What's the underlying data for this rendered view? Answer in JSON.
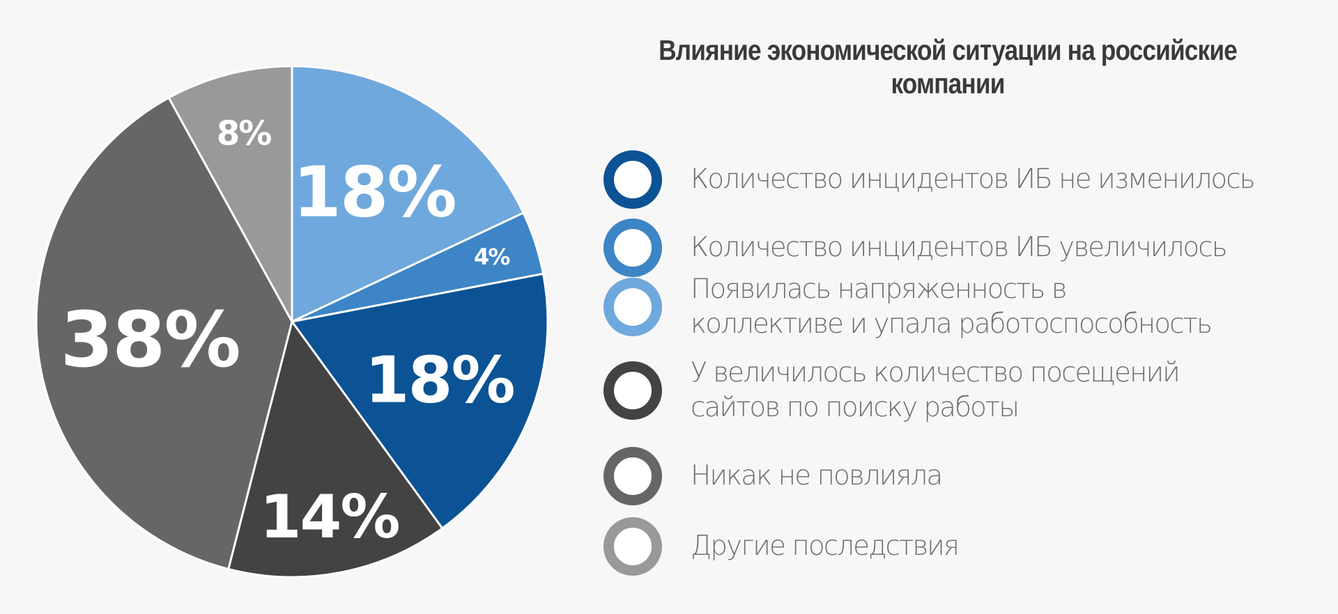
{
  "chart_data": {
    "type": "pie",
    "title": "Влияние экономической ситуации на российские компании",
    "start": "top",
    "direction": "clockwise",
    "slices": [
      {
        "label": "Появилась напряженность в коллективе и упала работоспособность",
        "value": 18,
        "data_label": "18%",
        "color": "#6fa8dc"
      },
      {
        "label": "Количество инцидентов ИБ увеличилось",
        "value": 4,
        "data_label": "4%",
        "color": "#3d85c6"
      },
      {
        "label": "Количество инцидентов ИБ не изменилось",
        "value": 18,
        "data_label": "18%",
        "color": "#0b5394"
      },
      {
        "label": "У величилось количество посещений сайтов по поиску работы",
        "value": 14,
        "data_label": "14%",
        "color": "#434343"
      },
      {
        "label": "Никак не повлияла",
        "value": 38,
        "data_label": "38%",
        "color": "#666666"
      },
      {
        "label": "Другие последствия",
        "value": 8,
        "data_label": "8%",
        "color": "#999999"
      }
    ],
    "legend": [
      {
        "text": "Количество инцидентов ИБ не изменилось",
        "color": "#0b5394"
      },
      {
        "text": "Количество инцидентов ИБ увеличилось",
        "color": "#3d85c6"
      },
      {
        "text": "Появилась напряженность в\nколлективе и упала работоспособность",
        "color": "#6fa8dc"
      },
      {
        "text": "У величилось количество посещений\nсайтов по поиску работы",
        "color": "#434343"
      },
      {
        "text": "Никак не повлияла",
        "color": "#666666"
      },
      {
        "text": "Другие последствия",
        "color": "#999999"
      }
    ],
    "legend_placement": "right"
  }
}
